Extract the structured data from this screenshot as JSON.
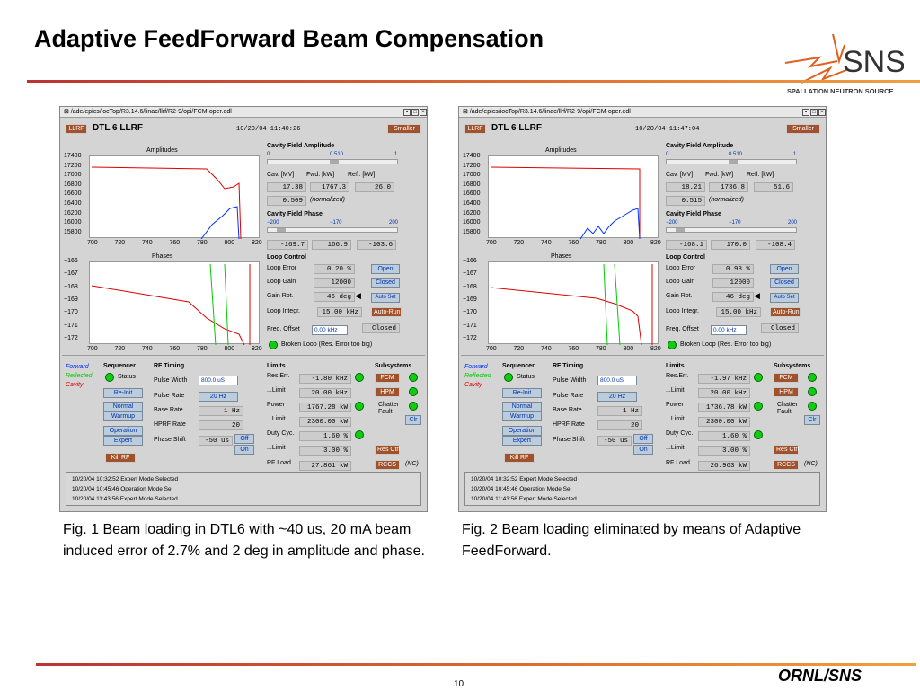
{
  "title": "Adaptive FeedForward Beam Compensation",
  "logo": {
    "text": "SNS",
    "subtitle": "SPALLATION NEUTRON SOURCE"
  },
  "windows": [
    {
      "titlebar": "⊠ /ade/epics/iocTop/R3.14.6/linac/llrf/R2-9/opi/FCM-oper.edl",
      "tb_buttons": [
        "▪",
        "□",
        "×"
      ],
      "llrf_label": "LLRF",
      "heading": "DTL 6 LLRF",
      "datetime": "10/20/04 11:40:26",
      "smaller": "Smaller",
      "amp_plot": {
        "title": "Amplitudes",
        "yticks": [
          "17400",
          "17200",
          "17000",
          "16800",
          "16600",
          "16400",
          "16200",
          "16000",
          "15800"
        ],
        "xticks": [
          "700",
          "720",
          "740",
          "760",
          "780",
          "800",
          "820"
        ]
      },
      "phase_plot": {
        "title": "Phases",
        "yticks": [
          "−166",
          "−167",
          "−168",
          "−169",
          "−170",
          "−171",
          "−172"
        ],
        "xticks": [
          "700",
          "720",
          "740",
          "760",
          "780",
          "800",
          "820"
        ]
      },
      "cav_amp": {
        "label": "Cavity Field Amplitude",
        "scale": [
          "0",
          "0.510",
          "1"
        ],
        "level": 0.51
      },
      "cav_cols": {
        "cav": "Cav. [MV]",
        "fwd": "Fwd. [kW]",
        "refl": "Refl. [kW]"
      },
      "cav_vals": {
        "cav": "17.38",
        "fwd": "1767.3",
        "refl": "26.0"
      },
      "normalized": "0.509",
      "normalized_lbl": "(normalized)",
      "cav_phase": {
        "label": "Cavity Field Phase",
        "scale": [
          "−200",
          "−170",
          "200"
        ],
        "level": 0.075
      },
      "phase_vals": {
        "a": "-169.7",
        "b": "166.9",
        "c": "-103.6"
      },
      "loop": {
        "label": "Loop Control",
        "error_lbl": "Loop Error",
        "error": "0.20 %",
        "open": "Open",
        "gain_lbl": "Loop Gain",
        "gain": "12000",
        "closed": "Closed",
        "rot_lbl": "Gain Rot.",
        "rot": "46 deg",
        "autoset": "Auto Set",
        "integr_lbl": "Loop Integr.",
        "integr": "15.00 kHz",
        "autorun": "Auto-Run",
        "freq_lbl": "Freq. Offset",
        "freq": "0.00 kHz",
        "freq_state": "Closed",
        "broken": "Broken Loop (Res. Error too big)"
      },
      "legend": {
        "forward": "Forward",
        "reflected": "Reflected",
        "cavity": "Cavity"
      },
      "sequencer": {
        "label": "Sequencer",
        "status": "Status",
        "reinit": "Re-Init",
        "normal": "Normal",
        "warmup": "Warmup",
        "operation": "Operation",
        "expert": "Expert",
        "killrf": "Kill RF"
      },
      "rftiming": {
        "label": "RF Timing",
        "pw_lbl": "Pulse Width",
        "pw": "800.0 uS",
        "pr_lbl": "Pulse Rate",
        "pr": "20 Hz",
        "br_lbl": "Base Rate",
        "br": "1 Hz",
        "hpr_lbl": "HPRF Rate",
        "hpr": "20",
        "ps_lbl": "Phase Shift",
        "ps": "-50 us",
        "off": "Off",
        "on": "On"
      },
      "limits": {
        "label": "Limits",
        "reserr_lbl": "Res.Err.",
        "reserr": "-1.80 kHz",
        "lim1_lbl": "...Limit",
        "lim1": "20.00 kHz",
        "power_lbl": "Power",
        "power": "1767.28 kW",
        "lim2_lbl": "...Limit",
        "lim2": "2300.00 kW",
        "duty_lbl": "Duty Cyc.",
        "duty": "1.60 %",
        "lim3_lbl": "...Limit",
        "lim3": "3.00 %",
        "rfload_lbl": "RF Load",
        "rfload": "27.861 kW"
      },
      "subsystems": {
        "label": "Subsystems",
        "fcm": "FCM",
        "hpm": "HPM",
        "chatter": "Chatter",
        "fault": "Fault",
        "clr": "Clr",
        "resctrl": "Res Ctrl",
        "rccs": "RCCS",
        "nc": "(NC)"
      },
      "log": [
        "10/20/04 10:32:52  Expert Mode Selected",
        "10/20/04 10:45:46  Operation Mode Sel",
        "10/20/04 11:43:56  Expert Mode Selected"
      ]
    },
    {
      "titlebar": "⊠ /ade/epics/iocTop/R3.14.6/linac/llrf/R2-9/opi/FCM-oper.edl",
      "tb_buttons": [
        "▪",
        "□",
        "×"
      ],
      "llrf_label": "LLRF",
      "heading": "DTL 6 LLRF",
      "datetime": "10/20/04 11:47:04",
      "smaller": "Smaller",
      "amp_plot": {
        "title": "Amplitudes",
        "yticks": [
          "17400",
          "17200",
          "17000",
          "16800",
          "16600",
          "16400",
          "16200",
          "16000",
          "15800"
        ],
        "xticks": [
          "700",
          "720",
          "740",
          "760",
          "780",
          "800",
          "820"
        ]
      },
      "phase_plot": {
        "title": "Phases",
        "yticks": [
          "−166",
          "−167",
          "−168",
          "−169",
          "−170",
          "−171",
          "−172"
        ],
        "xticks": [
          "700",
          "720",
          "740",
          "760",
          "780",
          "800",
          "820"
        ]
      },
      "cav_amp": {
        "label": "Cavity Field Amplitude",
        "scale": [
          "0",
          "0.510",
          "1"
        ],
        "level": 0.51
      },
      "cav_cols": {
        "cav": "Cav. [MV]",
        "fwd": "Fwd. [kW]",
        "refl": "Refl. [kW]"
      },
      "cav_vals": {
        "cav": "18.21",
        "fwd": "1736.8",
        "refl": "51.6"
      },
      "normalized": "0.515",
      "normalized_lbl": "(normalized)",
      "cav_phase": {
        "label": "Cavity Field Phase",
        "scale": [
          "−200",
          "−170",
          "200"
        ],
        "level": 0.075
      },
      "phase_vals": {
        "a": "-168.1",
        "b": "170.0",
        "c": "-108.4"
      },
      "loop": {
        "label": "Loop Control",
        "error_lbl": "Loop Error",
        "error": "0.93 %",
        "open": "Open",
        "gain_lbl": "Loop Gain",
        "gain": "12000",
        "closed": "Closed",
        "rot_lbl": "Gain Rot.",
        "rot": "46 deg",
        "autoset": "Auto Set",
        "integr_lbl": "Loop Integr.",
        "integr": "15.00 kHz",
        "autorun": "Auto-Run",
        "freq_lbl": "Freq. Offset",
        "freq": "0.00 kHz",
        "freq_state": "Closed",
        "broken": "Broken Loop (Res. Error too big)"
      },
      "legend": {
        "forward": "Forward",
        "reflected": "Reflected",
        "cavity": "Cavity"
      },
      "sequencer": {
        "label": "Sequencer",
        "status": "Status",
        "reinit": "Re-Init",
        "normal": "Normal",
        "warmup": "Warmup",
        "operation": "Operation",
        "expert": "Expert",
        "killrf": "Kill RF"
      },
      "rftiming": {
        "label": "RF Timing",
        "pw_lbl": "Pulse Width",
        "pw": "800.0 uS",
        "pr_lbl": "Pulse Rate",
        "pr": "20 Hz",
        "br_lbl": "Base Rate",
        "br": "1 Hz",
        "hpr_lbl": "HPRF Rate",
        "hpr": "20",
        "ps_lbl": "Phase Shift",
        "ps": "-50 us",
        "off": "Off",
        "on": "On"
      },
      "limits": {
        "label": "Limits",
        "reserr_lbl": "Res.Err.",
        "reserr": "-1.97 kHz",
        "lim1_lbl": "...Limit",
        "lim1": "20.00 kHz",
        "power_lbl": "Power",
        "power": "1736.78 kW",
        "lim2_lbl": "...Limit",
        "lim2": "2300.00 kW",
        "duty_lbl": "Duty Cyc.",
        "duty": "1.60 %",
        "lim3_lbl": "...Limit",
        "lim3": "3.00 %",
        "rfload_lbl": "RF Load",
        "rfload": "26.963 kW"
      },
      "subsystems": {
        "label": "Subsystems",
        "fcm": "FCM",
        "hpm": "HPM",
        "chatter": "Chatter",
        "fault": "Fault",
        "clr": "Clr",
        "resctrl": "Res Ctrl",
        "rccs": "RCCS",
        "nc": "(NC)"
      },
      "log": [
        "10/20/04 10:32:52  Expert Mode Selected",
        "10/20/04 10:45:46  Operation Mode Sel",
        "10/20/04 11:43:56  Expert Mode Selected"
      ]
    }
  ],
  "captions": [
    "Fig. 1  Beam loading in DTL6 with ~40 us, 20 mA beam induced error of 2.7% and 2 deg in amplitude and phase.",
    "Fig. 2  Beam loading eliminated by means of Adaptive FeedForward."
  ],
  "footer": {
    "page": "10",
    "org": "ORNL/SNS"
  },
  "colors": {
    "forward": "#0033ff",
    "reflected": "#00cc00",
    "cavity": "#dd0000",
    "accent": "#a0522d"
  }
}
